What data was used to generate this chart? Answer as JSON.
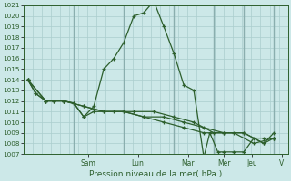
{
  "title": "Pression niveau de la mer( hPa )",
  "background_color": "#cce8e8",
  "grid_color": "#aacece",
  "line_color": "#2d5f2d",
  "ylim_min": 1007,
  "ylim_max": 1021,
  "yticks": [
    1007,
    1008,
    1009,
    1010,
    1011,
    1012,
    1013,
    1014,
    1015,
    1016,
    1017,
    1018,
    1019,
    1020,
    1021
  ],
  "xlim_min": -0.2,
  "xlim_max": 13.0,
  "day_labels": [
    "Sam",
    "Lun",
    "Mar",
    "Mer",
    "Jeu",
    "V"
  ],
  "day_tick_positions": [
    3.0,
    5.5,
    8.0,
    9.8,
    11.2,
    12.7
  ],
  "day_divider_positions": [
    2.3,
    4.8,
    7.3,
    9.3,
    10.8,
    12.3
  ],
  "series": [
    {
      "x": [
        0.0,
        0.4,
        0.9,
        1.3,
        1.8,
        2.3,
        2.8,
        3.3,
        3.8,
        4.3,
        4.8,
        5.3,
        5.8,
        6.3,
        6.8,
        7.3,
        7.8,
        8.3,
        8.8,
        9.1,
        9.5,
        9.8,
        10.3,
        10.8,
        11.3,
        11.8,
        12.3
      ],
      "y": [
        1014,
        1012.7,
        1012,
        1012,
        1012,
        1011.8,
        1010.5,
        1011.5,
        1015,
        1016,
        1017.5,
        1020,
        1020.3,
        1021.4,
        1019,
        1016.5,
        1013.5,
        1013,
        1006.7,
        1009,
        1007.2,
        1007.2,
        1007.2,
        1007.2,
        1008.5,
        1008.5,
        1008.5
      ]
    },
    {
      "x": [
        0.0,
        0.4,
        0.9,
        1.3,
        1.8,
        2.3,
        2.8,
        3.3,
        4.3,
        5.3,
        6.3,
        7.3,
        8.3,
        9.3,
        10.3,
        11.3,
        12.3
      ],
      "y": [
        1014,
        1012.7,
        1012,
        1012,
        1012,
        1011.8,
        1010.5,
        1011,
        1011,
        1011,
        1011,
        1010.5,
        1010,
        1009,
        1009,
        1008,
        1008.5
      ]
    },
    {
      "x": [
        0.0,
        0.9,
        1.8,
        2.8,
        3.8,
        4.8,
        5.8,
        6.8,
        7.8,
        8.8,
        9.8,
        10.8,
        11.8,
        12.3
      ],
      "y": [
        1014,
        1012,
        1012,
        1011.5,
        1011,
        1011,
        1010.5,
        1010.5,
        1010,
        1009.5,
        1009,
        1009,
        1008,
        1008.5
      ]
    },
    {
      "x": [
        0.0,
        0.9,
        1.8,
        2.8,
        3.8,
        4.8,
        5.8,
        6.8,
        7.8,
        8.8,
        9.8,
        10.8,
        11.8,
        12.3
      ],
      "y": [
        1014,
        1012,
        1012,
        1011.5,
        1011,
        1011,
        1010.5,
        1010,
        1009.5,
        1009,
        1009,
        1009,
        1008,
        1009
      ]
    }
  ]
}
